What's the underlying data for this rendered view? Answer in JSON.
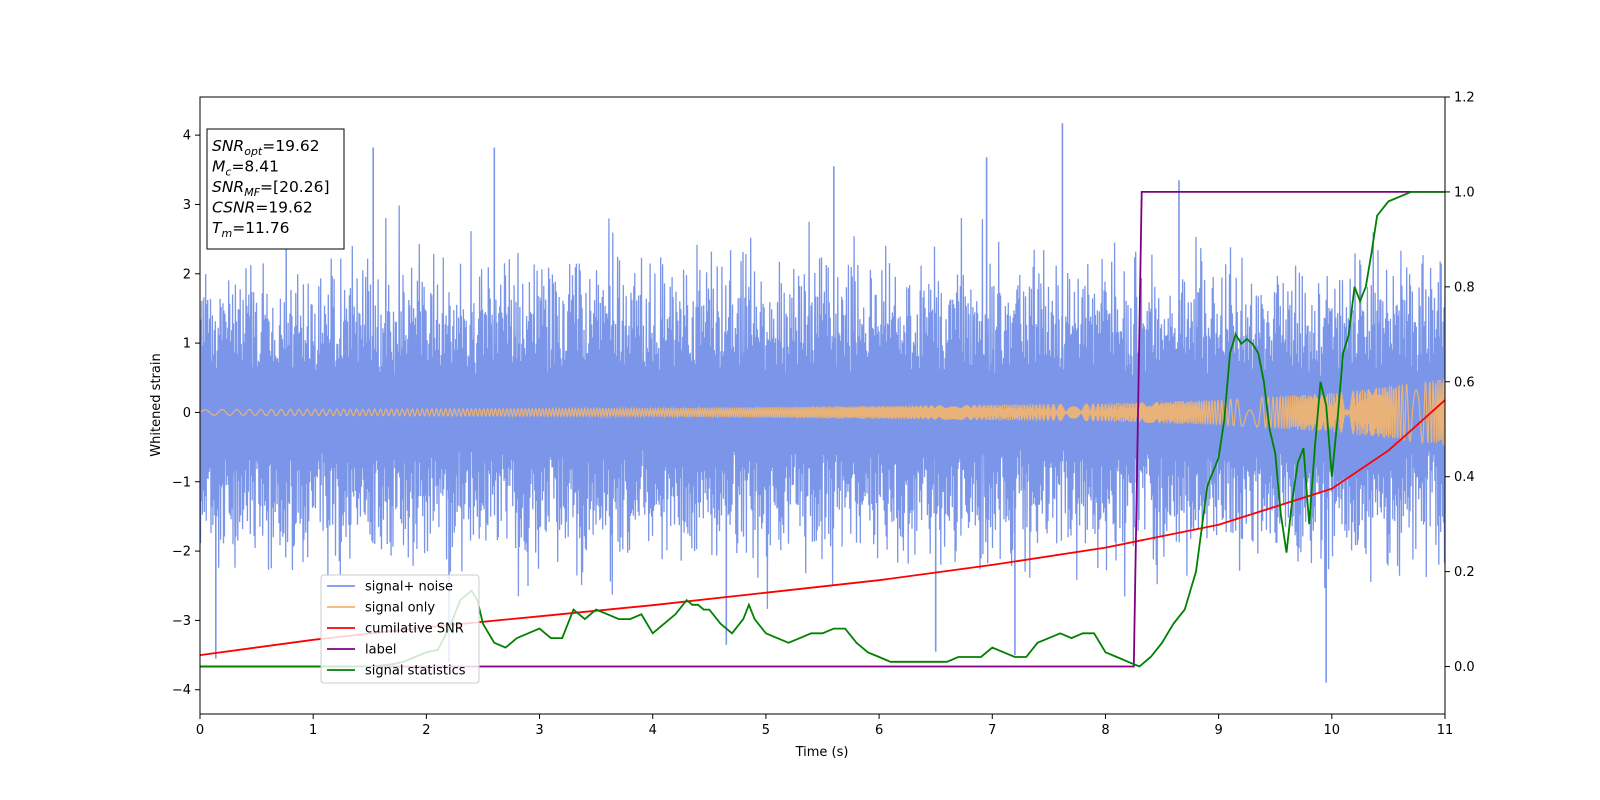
{
  "chart_data": {
    "type": "line",
    "xlabel": "Time (s)",
    "ylabel": "Whitened strain",
    "xlim": [
      0,
      11
    ],
    "ylim_left": [
      -4.35,
      4.55
    ],
    "ylim_right": [
      -0.1,
      1.2
    ],
    "xticks": [
      "0",
      "1",
      "2",
      "3",
      "4",
      "5",
      "6",
      "7",
      "8",
      "9",
      "10",
      "11"
    ],
    "yticks_left": [
      "4",
      "3",
      "2",
      "1",
      "0",
      "−1",
      "−2",
      "−3",
      "−4"
    ],
    "yticks_right": [
      "1.2",
      "1.0",
      "0.8",
      "0.6",
      "0.4",
      "0.2",
      "0.0"
    ],
    "grid": false,
    "legend_position": "lower-left",
    "stats_box": {
      "position": "upper-left",
      "lines": [
        {
          "sym": "SNR",
          "sub": "opt",
          "value": "=19.62"
        },
        {
          "sym": "M",
          "sub": "c",
          "value": "=8.41"
        },
        {
          "sym": "SNR",
          "sub": "MF",
          "value": "=[20.26]"
        },
        {
          "sym": "CSNR",
          "sub": "",
          "value": "=19.62"
        },
        {
          "sym": "T",
          "sub": "m",
          "value": "=11.76"
        }
      ]
    },
    "series": [
      {
        "name": "signal+ noise",
        "axis": "left",
        "color": "#7b96e8",
        "noise_band": [
          -1.5,
          1.5
        ],
        "peaks": [
          {
            "x": 1.53,
            "y": 3.82
          },
          {
            "x": 2.6,
            "y": 3.82
          },
          {
            "x": 5.6,
            "y": 3.55
          },
          {
            "x": 7.62,
            "y": 4.17
          },
          {
            "x": 6.95,
            "y": 3.68
          },
          {
            "x": 8.65,
            "y": 3.35
          },
          {
            "x": 0.14,
            "y": -3.55
          },
          {
            "x": 2.2,
            "y": -3.6
          },
          {
            "x": 9.95,
            "y": -3.9
          },
          {
            "x": 6.5,
            "y": -3.45
          },
          {
            "x": 4.65,
            "y": -3.35
          },
          {
            "x": 7.2,
            "y": -3.5
          }
        ]
      },
      {
        "name": "signal only",
        "axis": "left",
        "color": "#f5b56b",
        "envelope": [
          {
            "x": 0,
            "y": 0.04
          },
          {
            "x": 4,
            "y": 0.06
          },
          {
            "x": 8,
            "y": 0.13
          },
          {
            "x": 9,
            "y": 0.18
          },
          {
            "x": 10,
            "y": 0.28
          },
          {
            "x": 11,
            "y": 0.48
          }
        ]
      },
      {
        "name": "cumilative SNR",
        "axis": "left",
        "color": "#ff0000",
        "x": [
          0,
          1,
          2,
          3,
          4,
          5,
          6,
          7,
          8,
          9,
          10,
          10.5,
          11
        ],
        "y": [
          -3.5,
          -3.28,
          -3.1,
          -2.94,
          -2.78,
          -2.6,
          -2.42,
          -2.2,
          -1.95,
          -1.62,
          -1.1,
          -0.55,
          0.18
        ]
      },
      {
        "name": "label",
        "axis": "right",
        "color": "#800080",
        "x": [
          0,
          8.25,
          8.32,
          11
        ],
        "y": [
          0.0,
          0.0,
          1.0,
          1.0
        ]
      },
      {
        "name": "signal statistics",
        "axis": "right",
        "color": "#008000",
        "x": [
          0,
          0.5,
          1.0,
          1.5,
          1.7,
          1.8,
          1.9,
          2.0,
          2.1,
          2.2,
          2.3,
          2.35,
          2.4,
          2.45,
          2.5,
          2.55,
          2.6,
          2.7,
          2.8,
          2.9,
          3.0,
          3.1,
          3.2,
          3.3,
          3.4,
          3.5,
          3.6,
          3.7,
          3.8,
          3.9,
          4.0,
          4.1,
          4.2,
          4.3,
          4.35,
          4.4,
          4.45,
          4.5,
          4.6,
          4.7,
          4.8,
          4.85,
          4.9,
          5.0,
          5.1,
          5.2,
          5.3,
          5.4,
          5.5,
          5.6,
          5.7,
          5.8,
          5.9,
          6.0,
          6.1,
          6.2,
          6.3,
          6.4,
          6.5,
          6.6,
          6.7,
          6.8,
          6.9,
          7.0,
          7.1,
          7.2,
          7.3,
          7.4,
          7.5,
          7.6,
          7.7,
          7.8,
          7.9,
          8.0,
          8.1,
          8.2,
          8.3,
          8.4,
          8.5,
          8.6,
          8.7,
          8.8,
          8.9,
          9.0,
          9.05,
          9.1,
          9.15,
          9.2,
          9.25,
          9.3,
          9.35,
          9.4,
          9.45,
          9.5,
          9.55,
          9.6,
          9.65,
          9.7,
          9.75,
          9.8,
          9.85,
          9.9,
          9.95,
          10.0,
          10.05,
          10.1,
          10.15,
          10.2,
          10.25,
          10.3,
          10.35,
          10.4,
          10.5,
          10.6,
          10.7,
          10.8,
          10.9,
          11.0
        ],
        "y": [
          0.0,
          0.0,
          0.0,
          0.0,
          0.005,
          0.01,
          0.02,
          0.03,
          0.035,
          0.08,
          0.14,
          0.15,
          0.16,
          0.14,
          0.09,
          0.07,
          0.05,
          0.04,
          0.06,
          0.07,
          0.08,
          0.06,
          0.06,
          0.12,
          0.1,
          0.12,
          0.11,
          0.1,
          0.1,
          0.11,
          0.07,
          0.09,
          0.11,
          0.14,
          0.13,
          0.13,
          0.12,
          0.12,
          0.09,
          0.07,
          0.1,
          0.13,
          0.1,
          0.07,
          0.06,
          0.05,
          0.06,
          0.07,
          0.07,
          0.08,
          0.08,
          0.05,
          0.03,
          0.02,
          0.01,
          0.01,
          0.01,
          0.01,
          0.01,
          0.01,
          0.02,
          0.02,
          0.02,
          0.04,
          0.03,
          0.02,
          0.02,
          0.05,
          0.06,
          0.07,
          0.06,
          0.07,
          0.07,
          0.03,
          0.02,
          0.01,
          0.0,
          0.02,
          0.05,
          0.09,
          0.12,
          0.2,
          0.38,
          0.44,
          0.52,
          0.66,
          0.7,
          0.68,
          0.69,
          0.68,
          0.66,
          0.6,
          0.5,
          0.45,
          0.32,
          0.24,
          0.35,
          0.43,
          0.46,
          0.3,
          0.46,
          0.6,
          0.55,
          0.4,
          0.52,
          0.66,
          0.7,
          0.8,
          0.77,
          0.8,
          0.87,
          0.95,
          0.98,
          0.99,
          1.0,
          1.0,
          1.0,
          1.0
        ]
      }
    ]
  }
}
